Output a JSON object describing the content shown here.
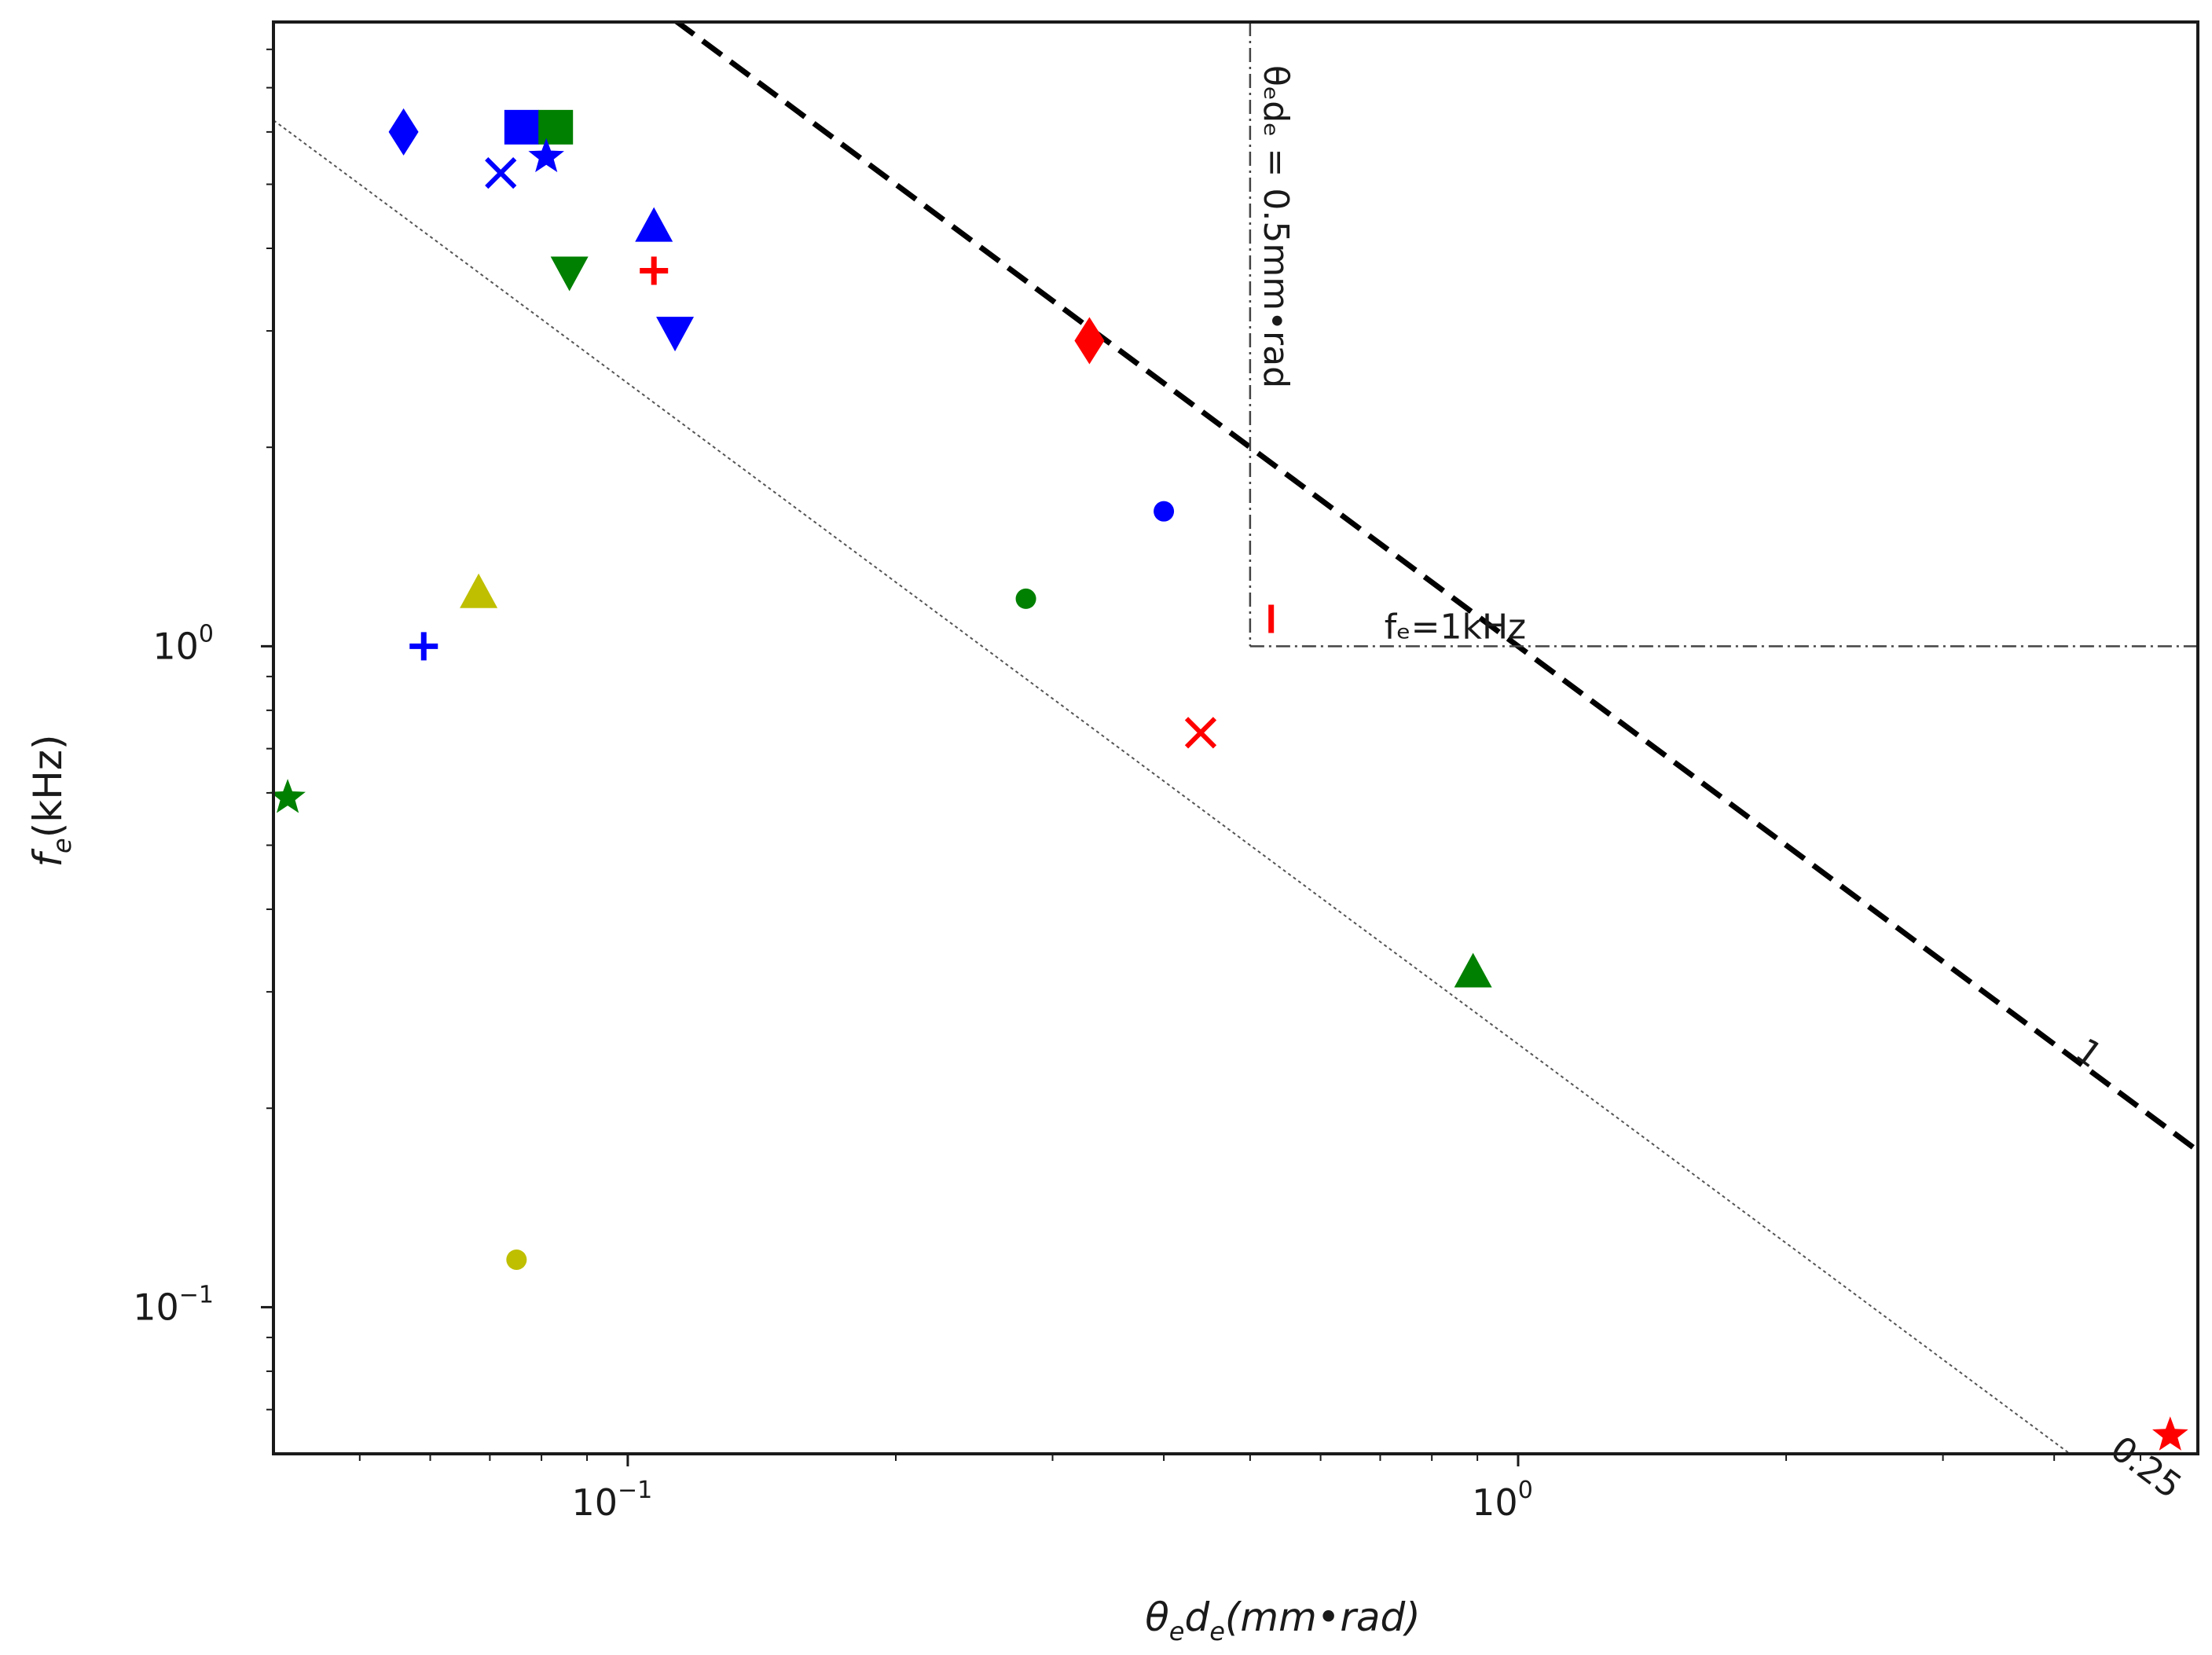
{
  "chart_data": {
    "type": "scatter",
    "x_scale": "log",
    "y_scale": "log",
    "xlim": [
      0.04,
      5.8
    ],
    "ylim": [
      0.06,
      8.8
    ],
    "xlabel": {
      "base": "θ",
      "sub1": "e",
      "mid": "d",
      "sub2": "e",
      "unit": "(mm•rad)"
    },
    "ylabel": {
      "base": "f",
      "sub": "e",
      "unit": "(kHz)"
    },
    "x_ticks": [
      {
        "value": 0.1,
        "base": "10",
        "exp": "−1"
      },
      {
        "value": 1.0,
        "base": "10",
        "exp": "0"
      }
    ],
    "y_ticks": [
      {
        "value": 0.1,
        "base": "10",
        "exp": "−1"
      },
      {
        "value": 1.0,
        "base": "10",
        "exp": "0"
      }
    ],
    "x_minor_ticks": [
      0.05,
      0.06,
      0.07,
      0.08,
      0.09,
      0.2,
      0.3,
      0.4,
      0.5,
      0.6,
      0.7,
      0.8,
      0.9,
      2,
      3,
      4,
      5
    ],
    "y_minor_ticks": [
      0.07,
      0.08,
      0.09,
      0.2,
      0.3,
      0.4,
      0.5,
      0.6,
      0.7,
      0.8,
      0.9,
      2,
      3,
      4,
      5,
      6,
      7,
      8
    ],
    "lines": [
      {
        "name": "product-1",
        "product": 1.0,
        "style": "dashed-bold",
        "label": "1",
        "label_at": [
          4.2,
          0.24
        ]
      },
      {
        "name": "product-0.25",
        "product": 0.25,
        "style": "dotted-thin",
        "label": "0.25",
        "label_at": [
          4.6,
          0.06
        ]
      }
    ],
    "threshold_lines": {
      "vertical_x": 0.5,
      "horizontal_y": 1.0,
      "vertical_label": "θₑdₑ = 0.5mm•rad",
      "horizontal_label": "fₑ=1kHz"
    },
    "points": [
      {
        "x": 0.056,
        "y": 6.0,
        "marker": "diamond",
        "color": "#0000ff"
      },
      {
        "x": 0.076,
        "y": 6.1,
        "marker": "square",
        "color": "#0000ff"
      },
      {
        "x": 0.083,
        "y": 6.1,
        "marker": "square",
        "color": "#008000"
      },
      {
        "x": 0.072,
        "y": 5.2,
        "marker": "x",
        "color": "#0000ff"
      },
      {
        "x": 0.081,
        "y": 5.5,
        "marker": "star",
        "color": "#0000ff"
      },
      {
        "x": 0.107,
        "y": 4.3,
        "marker": "triangle-up",
        "color": "#0000ff"
      },
      {
        "x": 0.086,
        "y": 3.7,
        "marker": "triangle-down",
        "color": "#008000"
      },
      {
        "x": 0.107,
        "y": 3.7,
        "marker": "plus",
        "color": "#ff0000"
      },
      {
        "x": 0.113,
        "y": 3.0,
        "marker": "triangle-down",
        "color": "#0000ff"
      },
      {
        "x": 0.33,
        "y": 2.9,
        "marker": "diamond",
        "color": "#ff0000"
      },
      {
        "x": 0.4,
        "y": 1.6,
        "marker": "circle",
        "color": "#0000ff"
      },
      {
        "x": 0.28,
        "y": 1.18,
        "marker": "circle",
        "color": "#008000"
      },
      {
        "x": 0.528,
        "y": 1.1,
        "marker": "vline",
        "color": "#ff0000"
      },
      {
        "x": 0.068,
        "y": 1.2,
        "marker": "triangle-up",
        "color": "#bfbf00"
      },
      {
        "x": 0.059,
        "y": 1.0,
        "marker": "plus",
        "color": "#0000ff"
      },
      {
        "x": 0.44,
        "y": 0.74,
        "marker": "x",
        "color": "#ff0000"
      },
      {
        "x": 0.0415,
        "y": 0.59,
        "marker": "star",
        "color": "#008000"
      },
      {
        "x": 0.89,
        "y": 0.32,
        "marker": "triangle-up",
        "color": "#008000"
      },
      {
        "x": 0.075,
        "y": 0.118,
        "marker": "circle",
        "color": "#bfbf00"
      },
      {
        "x": 5.4,
        "y": 0.064,
        "marker": "star",
        "color": "#ff0000"
      }
    ]
  }
}
